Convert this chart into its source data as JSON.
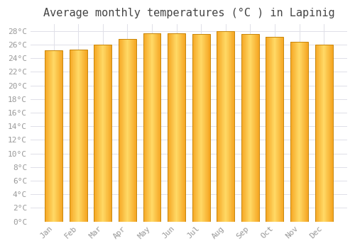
{
  "title": "Average monthly temperatures (°C ) in Lapinig",
  "months": [
    "Jan",
    "Feb",
    "Mar",
    "Apr",
    "May",
    "Jun",
    "Jul",
    "Aug",
    "Sep",
    "Oct",
    "Nov",
    "Dec"
  ],
  "temperatures": [
    25.2,
    25.3,
    26.0,
    26.8,
    27.7,
    27.7,
    27.6,
    28.0,
    27.6,
    27.1,
    26.4,
    26.0
  ],
  "bar_color_left": "#F5A623",
  "bar_color_center": "#FFD966",
  "bar_color_right": "#F5A623",
  "bar_edge_color": "#C8860A",
  "ylim": [
    0,
    29
  ],
  "ytick_max": 28,
  "ytick_step": 2,
  "background_color": "#ffffff",
  "plot_bg_color": "#ffffff",
  "grid_color": "#e0e0e8",
  "title_fontsize": 11,
  "tick_fontsize": 8,
  "tick_color": "#999999",
  "title_color": "#444444"
}
